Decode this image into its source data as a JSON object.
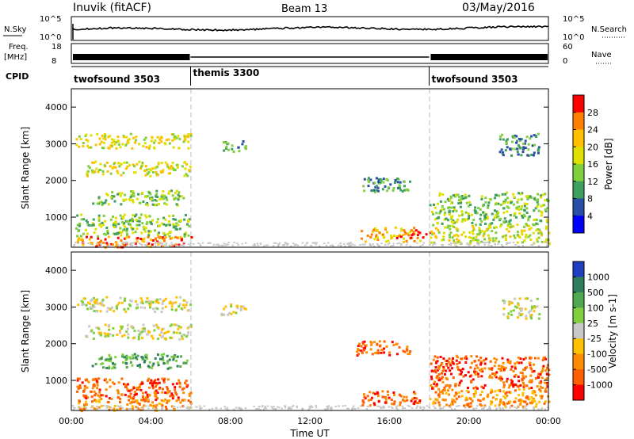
{
  "header": {
    "site": "Inuvik (fitACF)",
    "beam": "Beam 13",
    "date": "03/May/2016"
  },
  "noise_panel": {
    "left_label": "N.Sky",
    "right_label": "N.Search",
    "left_ticks": [
      "10^5",
      "10^0"
    ],
    "right_ticks": [
      "10^5",
      "10^0"
    ]
  },
  "freq_panel": {
    "left_label_1": "Freq.",
    "left_label_2": "[MHz]",
    "right_label": "Nave",
    "left_ticks": [
      "18",
      "8"
    ],
    "right_ticks": [
      "60",
      "0"
    ]
  },
  "cpid_panel": {
    "label": "CPID",
    "segments": [
      {
        "name": "twofsound 3503",
        "start_h": 0,
        "end_h": 6
      },
      {
        "name": "themis 3300",
        "start_h": 6,
        "end_h": 18
      },
      {
        "name": "twofsound 3503",
        "start_h": 18,
        "end_h": 24
      }
    ]
  },
  "power_colorbar": {
    "label": "Power [dB]",
    "ticks": [
      "28",
      "24",
      "20",
      "16",
      "12",
      "8",
      "4"
    ],
    "colors": [
      "#ff0000",
      "#ff7f00",
      "#ffc000",
      "#e0e000",
      "#7fcf3f",
      "#3f9f5f",
      "#2a4fa8",
      "#0000ff"
    ]
  },
  "velocity_colorbar": {
    "label": "Velocity [m s-1]",
    "ticks": [
      "1000",
      "500",
      "100",
      "25",
      "-25",
      "-100",
      "-500",
      "-1000"
    ],
    "colors": [
      "#1f3fbf",
      "#2f7f5f",
      "#4fa84f",
      "#7fcf3f",
      "#c8c8c8",
      "#ffc000",
      "#ff8c00",
      "#ff5f00",
      "#ff0000"
    ]
  },
  "colors": {
    "grey_scatter": "#c8c8c8"
  },
  "chart_data": [
    {
      "type": "heatmap",
      "name": "power",
      "ylabel": "Slant Range [km]",
      "xlabel": "Time UT",
      "xlim_hours": [
        0,
        24
      ],
      "ylim_km": [
        180,
        4500
      ],
      "y_ticks": [
        1000,
        2000,
        3000,
        4000
      ],
      "x_ticks": [
        "00:00",
        "04:00",
        "08:00",
        "12:00",
        "16:00",
        "20:00",
        "00:00"
      ],
      "regions": [
        {
          "t0": 0.2,
          "t1": 6.0,
          "r0": 2900,
          "r1": 3300,
          "level": 4
        },
        {
          "t0": 0.6,
          "t1": 6.0,
          "r0": 2150,
          "r1": 2550,
          "level": 4
        },
        {
          "t0": 1.0,
          "t1": 5.8,
          "r0": 1350,
          "r1": 1750,
          "level": 3
        },
        {
          "t0": 0.2,
          "t1": 6.0,
          "r0": 500,
          "r1": 1100,
          "level": 3
        },
        {
          "t0": 0.2,
          "t1": 6.0,
          "r0": 200,
          "r1": 500,
          "level": 6
        },
        {
          "t0": 7.5,
          "t1": 8.8,
          "r0": 2800,
          "r1": 3100,
          "level": 2
        },
        {
          "t0": 14.3,
          "t1": 17.0,
          "r0": 1700,
          "r1": 2100,
          "level": 2
        },
        {
          "t0": 14.5,
          "t1": 17.5,
          "r0": 350,
          "r1": 750,
          "level": 5
        },
        {
          "t0": 16.3,
          "t1": 18.0,
          "r0": 450,
          "r1": 700,
          "level": 7
        },
        {
          "t0": 18.0,
          "t1": 24.0,
          "r0": 800,
          "r1": 1700,
          "level": 3
        },
        {
          "t0": 18.0,
          "t1": 24.0,
          "r0": 300,
          "r1": 800,
          "level": 4
        },
        {
          "t0": 21.5,
          "t1": 23.5,
          "r0": 2700,
          "r1": 3300,
          "level": 2
        }
      ]
    },
    {
      "type": "heatmap",
      "name": "velocity",
      "ylabel": "Slant Range [km]",
      "xlabel": "Time UT",
      "xlim_hours": [
        0,
        24
      ],
      "ylim_km": [
        180,
        4500
      ],
      "y_ticks": [
        1000,
        2000,
        3000,
        4000
      ],
      "x_ticks": [
        "00:00",
        "04:00",
        "08:00",
        "12:00",
        "16:00",
        "20:00",
        "00:00"
      ],
      "regions": [
        {
          "t0": 0.2,
          "t1": 6.0,
          "r0": 2900,
          "r1": 3300,
          "level": 4
        },
        {
          "t0": 0.6,
          "t1": 6.0,
          "r0": 2150,
          "r1": 2550,
          "level": 4
        },
        {
          "t0": 1.0,
          "t1": 5.8,
          "r0": 1350,
          "r1": 1750,
          "level": 2
        },
        {
          "t0": 0.2,
          "t1": 6.0,
          "r0": 500,
          "r1": 1100,
          "level": 7
        },
        {
          "t0": 0.2,
          "t1": 6.0,
          "r0": 200,
          "r1": 500,
          "level": 6
        },
        {
          "t0": 7.5,
          "t1": 8.8,
          "r0": 2800,
          "r1": 3100,
          "level": 4
        },
        {
          "t0": 14.3,
          "t1": 17.0,
          "r0": 1700,
          "r1": 2100,
          "level": 7
        },
        {
          "t0": 14.5,
          "t1": 17.5,
          "r0": 350,
          "r1": 750,
          "level": 7
        },
        {
          "t0": 18.0,
          "t1": 24.0,
          "r0": 800,
          "r1": 1700,
          "level": 7
        },
        {
          "t0": 18.0,
          "t1": 24.0,
          "r0": 300,
          "r1": 800,
          "level": 6
        },
        {
          "t0": 21.5,
          "t1": 23.5,
          "r0": 2700,
          "r1": 3300,
          "level": 4
        }
      ]
    }
  ]
}
